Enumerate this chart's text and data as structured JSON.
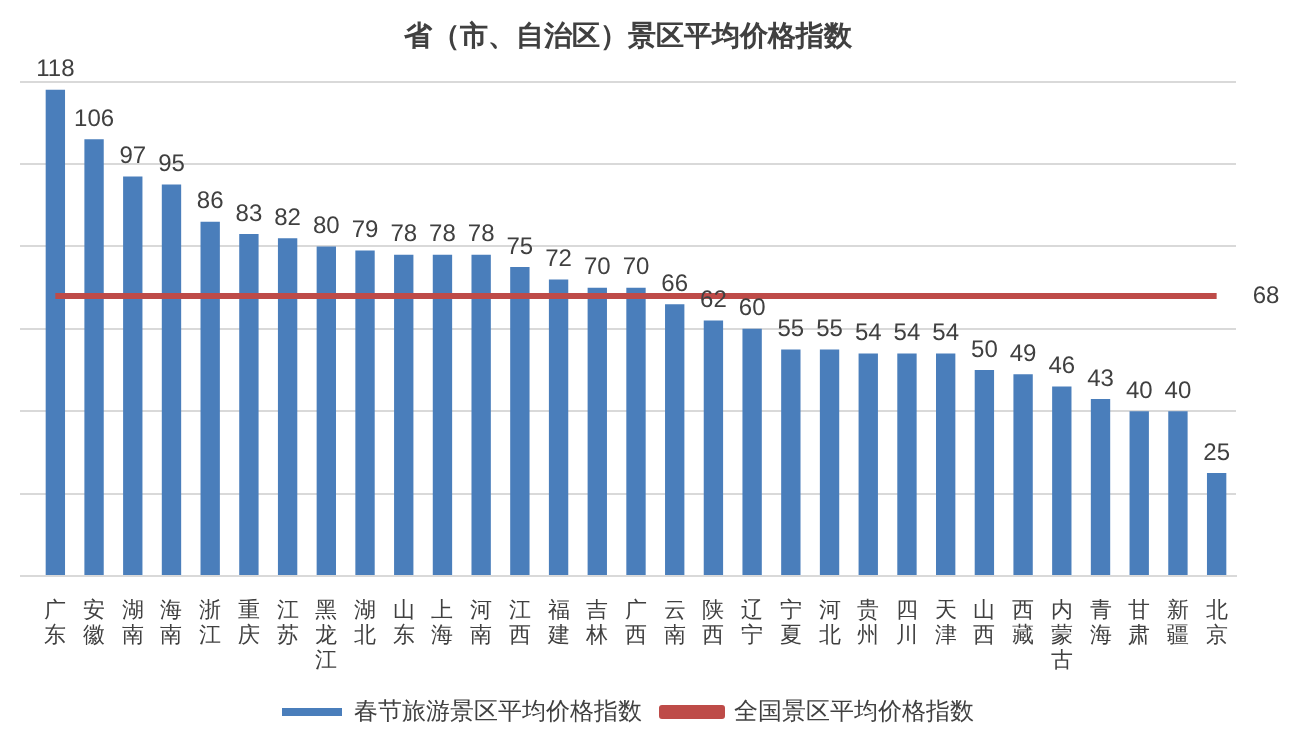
{
  "chart_data": {
    "type": "bar",
    "title": "省（市、自治区）景区平均价格指数",
    "categories": [
      "广东",
      "安徽",
      "湖南",
      "海南",
      "浙江",
      "重庆",
      "江苏",
      "黑龙江",
      "湖北",
      "山东",
      "上海",
      "河南",
      "江西",
      "福建",
      "吉林",
      "广西",
      "云南",
      "陕西",
      "辽宁",
      "宁夏",
      "河北",
      "贵州",
      "四川",
      "天津",
      "山西",
      "西藏",
      "内蒙古",
      "青海",
      "甘肃",
      "新疆",
      "北京"
    ],
    "series": [
      {
        "name": "春节旅游景区平均价格指数",
        "color": "#4a7ebb",
        "values": [
          118,
          106,
          97,
          95,
          86,
          83,
          82,
          80,
          79,
          78,
          78,
          78,
          75,
          72,
          70,
          70,
          66,
          62,
          60,
          55,
          55,
          54,
          54,
          54,
          50,
          49,
          46,
          43,
          40,
          40,
          25
        ],
        "value_labels": [
          "118",
          "106",
          "97",
          "95",
          "86",
          "83",
          "82",
          "80",
          "79",
          "78",
          "78",
          "78",
          "75",
          "72",
          "70",
          "70",
          "66",
          "62",
          "60",
          "55",
          "55",
          "54",
          "54",
          "54",
          "50",
          "49",
          "46",
          "43",
          "40",
          "40",
          "25"
        ]
      },
      {
        "name": "全国景区平均价格指数",
        "type": "line",
        "color": "#be4b48",
        "marker": "none",
        "values": [
          68,
          68,
          68,
          68,
          68,
          68,
          68,
          68,
          68,
          68,
          68,
          68,
          68,
          68,
          68,
          68,
          68,
          68,
          68,
          68,
          68,
          68,
          68,
          68,
          68,
          68,
          68,
          68,
          68,
          68,
          68
        ],
        "value_labels": [
          null,
          null,
          null,
          null,
          null,
          null,
          null,
          null,
          null,
          null,
          null,
          null,
          null,
          null,
          null,
          null,
          null,
          null,
          null,
          null,
          null,
          null,
          null,
          null,
          null,
          null,
          null,
          null,
          null,
          null,
          "68"
        ]
      }
    ],
    "ylim": [
      0,
      120
    ],
    "yticks": [
      {
        "value": 0,
        "label": null
      },
      {
        "value": 20,
        "label": null
      },
      {
        "value": 40,
        "label": null
      },
      {
        "value": 60,
        "label": null
      },
      {
        "value": 80,
        "label": null
      },
      {
        "value": 100,
        "label": null
      },
      {
        "value": 120,
        "label": null
      }
    ],
    "tick_labels": "x",
    "grid": "y",
    "legend": "bottom"
  }
}
